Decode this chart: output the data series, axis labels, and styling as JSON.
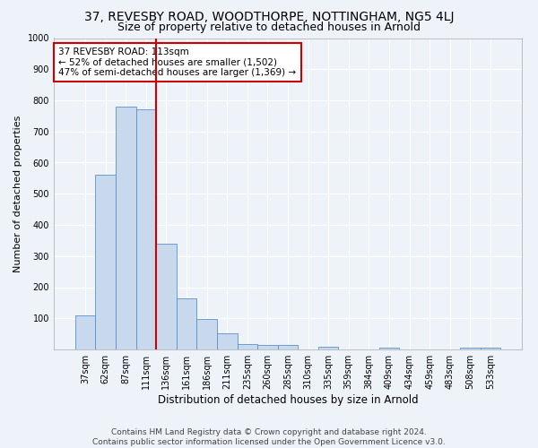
{
  "title": "37, REVESBY ROAD, WOODTHORPE, NOTTINGHAM, NG5 4LJ",
  "subtitle": "Size of property relative to detached houses in Arnold",
  "xlabel": "Distribution of detached houses by size in Arnold",
  "ylabel": "Number of detached properties",
  "bar_labels": [
    "37sqm",
    "62sqm",
    "87sqm",
    "111sqm",
    "136sqm",
    "161sqm",
    "186sqm",
    "211sqm",
    "235sqm",
    "260sqm",
    "285sqm",
    "310sqm",
    "335sqm",
    "359sqm",
    "384sqm",
    "409sqm",
    "434sqm",
    "459sqm",
    "483sqm",
    "508sqm",
    "533sqm"
  ],
  "bar_values": [
    110,
    560,
    780,
    770,
    340,
    163,
    97,
    52,
    17,
    13,
    13,
    0,
    9,
    0,
    0,
    5,
    0,
    0,
    0,
    7,
    7
  ],
  "bar_color": "#c9d9ed",
  "bar_edgecolor": "#5b8fc9",
  "vline_x_index": 3,
  "vline_color": "#cc0000",
  "annotation_line1": "37 REVESBY ROAD: 113sqm",
  "annotation_line2": "← 52% of detached houses are smaller (1,502)",
  "annotation_line3": "47% of semi-detached houses are larger (1,369) →",
  "annotation_box_color": "#ffffff",
  "annotation_box_edgecolor": "#cc0000",
  "ylim": [
    0,
    1000
  ],
  "yticks": [
    0,
    100,
    200,
    300,
    400,
    500,
    600,
    700,
    800,
    900,
    1000
  ],
  "footnote_line1": "Contains HM Land Registry data © Crown copyright and database right 2024.",
  "footnote_line2": "Contains public sector information licensed under the Open Government Licence v3.0.",
  "background_color": "#eef2f9",
  "plot_bg_color": "#eef2f9",
  "grid_color": "#ffffff",
  "title_fontsize": 10,
  "subtitle_fontsize": 9,
  "xlabel_fontsize": 8.5,
  "ylabel_fontsize": 8,
  "tick_fontsize": 7,
  "annotation_fontsize": 7.5,
  "footnote_fontsize": 6.5
}
